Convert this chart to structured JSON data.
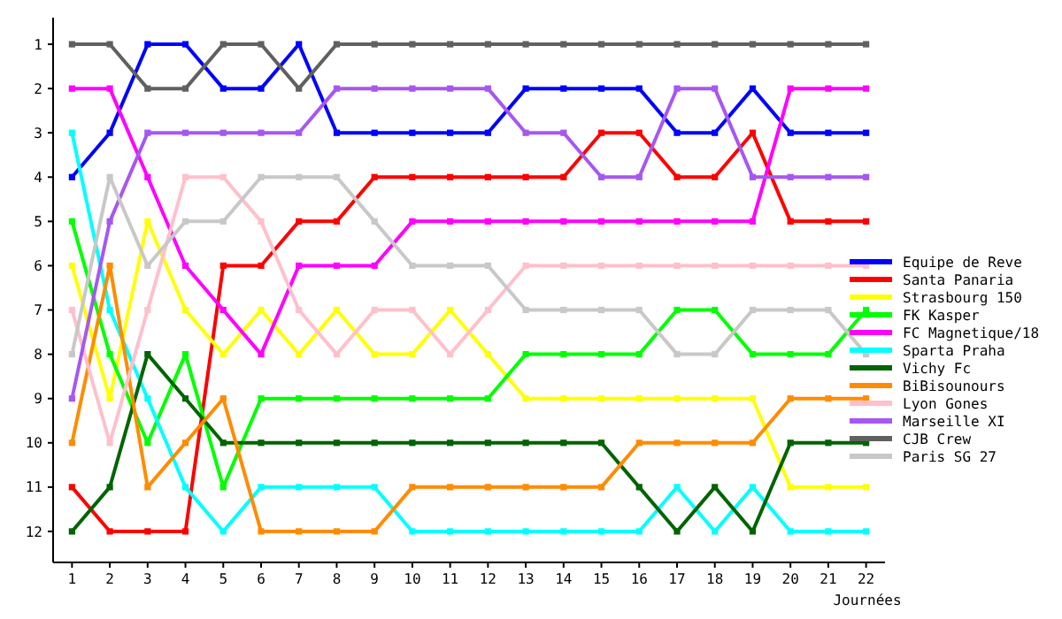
{
  "chart_data": {
    "type": "line",
    "xlabel": "Journées",
    "x": [
      1,
      2,
      3,
      4,
      5,
      6,
      7,
      8,
      9,
      10,
      11,
      12,
      13,
      14,
      15,
      16,
      17,
      18,
      19,
      20,
      21,
      22
    ],
    "xlim": [
      0.5,
      22.5
    ],
    "xticks": [
      1,
      2,
      3,
      4,
      5,
      6,
      7,
      8,
      9,
      10,
      11,
      12,
      13,
      14,
      15,
      16,
      17,
      18,
      19,
      20,
      21,
      22
    ],
    "ylim": [
      12.7,
      0.4
    ],
    "yticks": [
      1,
      2,
      3,
      4,
      5,
      6,
      7,
      8,
      9,
      10,
      11,
      12
    ],
    "grid": false,
    "legend": "right",
    "marker": "square",
    "line_style": "solid",
    "series": [
      {
        "name": "Equipe de Reve",
        "color": "#0000ff",
        "values": [
          4,
          3,
          1,
          1,
          2,
          2,
          1,
          3,
          3,
          3,
          3,
          3,
          2,
          2,
          2,
          2,
          3,
          3,
          2,
          3,
          3,
          3
        ]
      },
      {
        "name": "Santa Panaria",
        "color": "#ff0000",
        "values": [
          11,
          12,
          12,
          12,
          6,
          6,
          5,
          5,
          4,
          4,
          4,
          4,
          4,
          4,
          3,
          3,
          4,
          4,
          3,
          5,
          5,
          5
        ]
      },
      {
        "name": "Strasbourg 150",
        "color": "#ffff00",
        "values": [
          6,
          9,
          5,
          7,
          8,
          7,
          8,
          7,
          8,
          8,
          7,
          8,
          9,
          9,
          9,
          9,
          9,
          9,
          9,
          11,
          11,
          11
        ]
      },
      {
        "name": "FK Kasper",
        "color": "#00ff00",
        "values": [
          5,
          8,
          10,
          8,
          11,
          9,
          9,
          9,
          9,
          9,
          9,
          9,
          8,
          8,
          8,
          8,
          7,
          7,
          8,
          8,
          8,
          7
        ]
      },
      {
        "name": "FC Magnetique/18",
        "color": "#ff00ff",
        "values": [
          2,
          2,
          4,
          6,
          7,
          8,
          6,
          6,
          6,
          5,
          5,
          5,
          5,
          5,
          5,
          5,
          5,
          5,
          5,
          2,
          2,
          2
        ]
      },
      {
        "name": "Sparta Praha",
        "color": "#00ffff",
        "values": [
          3,
          7,
          9,
          11,
          12,
          11,
          11,
          11,
          11,
          12,
          12,
          12,
          12,
          12,
          12,
          12,
          11,
          12,
          11,
          12,
          12,
          12
        ]
      },
      {
        "name": "Vichy Fc",
        "color": "#006400",
        "values": [
          12,
          11,
          8,
          9,
          10,
          10,
          10,
          10,
          10,
          10,
          10,
          10,
          10,
          10,
          10,
          11,
          12,
          11,
          12,
          10,
          10,
          10
        ]
      },
      {
        "name": "BiBisounours",
        "color": "#ff8c00",
        "values": [
          10,
          6,
          11,
          10,
          9,
          12,
          12,
          12,
          12,
          11,
          11,
          11,
          11,
          11,
          11,
          10,
          10,
          10,
          10,
          9,
          9,
          9
        ]
      },
      {
        "name": "Lyon Gones",
        "color": "#ffc0cb",
        "values": [
          7,
          10,
          7,
          4,
          4,
          5,
          7,
          8,
          7,
          7,
          8,
          7,
          6,
          6,
          6,
          6,
          6,
          6,
          6,
          6,
          6,
          6
        ]
      },
      {
        "name": "Marseille XI",
        "color": "#a757f0",
        "values": [
          9,
          5,
          3,
          3,
          3,
          3,
          3,
          2,
          2,
          2,
          2,
          2,
          3,
          3,
          4,
          4,
          2,
          2,
          4,
          4,
          4,
          4
        ]
      },
      {
        "name": "CJB Crew",
        "color": "#606060",
        "values": [
          1,
          1,
          2,
          2,
          1,
          1,
          2,
          1,
          1,
          1,
          1,
          1,
          1,
          1,
          1,
          1,
          1,
          1,
          1,
          1,
          1,
          1
        ]
      },
      {
        "name": "Paris SG 27",
        "color": "#c8c8c8",
        "values": [
          8,
          4,
          6,
          5,
          5,
          4,
          4,
          4,
          5,
          6,
          6,
          6,
          7,
          7,
          7,
          7,
          8,
          8,
          7,
          7,
          7,
          8
        ]
      }
    ]
  }
}
